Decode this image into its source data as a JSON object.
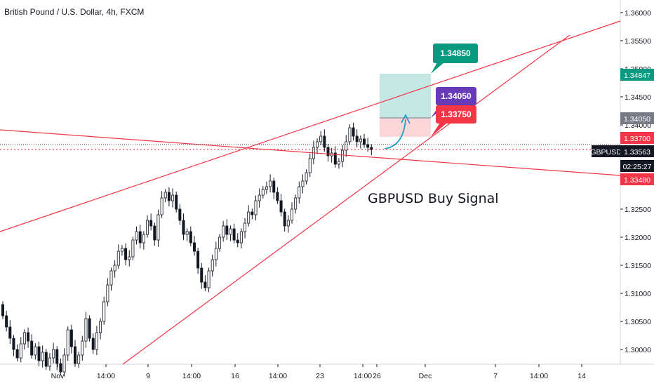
{
  "chart_data": {
    "type": "candlestick",
    "title": "British Pound / U.S. Dollar, 4h, FXCM",
    "symbol": "GBPUSD",
    "y_range": [
      1.295,
      1.362
    ],
    "y_ticks": [
      "1.36000",
      "1.35500",
      "1.35000",
      "1.34500",
      "1.34000",
      "1.33500",
      "1.33000",
      "1.32500",
      "1.32000",
      "1.31500",
      "1.31000",
      "1.30500",
      "1.30000"
    ],
    "x_ticks": [
      "Nov",
      "14:00",
      "9",
      "14:00",
      "16",
      "14:00",
      "23",
      "14:00",
      "26",
      "Dec",
      "7",
      "14:00",
      "14"
    ],
    "price_tags": [
      {
        "label": "1.34847",
        "value": 1.34847,
        "color": "#089981"
      },
      {
        "label": "1.34050",
        "value": 1.3405,
        "color": "#787b86"
      },
      {
        "label": "1.33700",
        "value": 1.337,
        "color": "#f23645"
      },
      {
        "label": "GBPUSD",
        "color": "#131722"
      },
      {
        "label": "1.33563",
        "value": 1.33563,
        "color": "#131722"
      },
      {
        "label": "02:25:27",
        "color": "#131722"
      },
      {
        "label": "1.33480",
        "value": 1.3348,
        "color": "#f23645"
      }
    ],
    "callouts": [
      {
        "label": "1.34850",
        "value": 1.3485,
        "color": "#089981"
      },
      {
        "label": "1.34050",
        "value": 1.3405,
        "color": "#673ab7"
      },
      {
        "label": "1.33750",
        "value": 1.3375,
        "color": "#f23645"
      }
    ],
    "annotation": "GBPUSD Buy Signal",
    "current_price": 1.33563,
    "colors": {
      "up": "#131722",
      "down": "#131722",
      "trendline": "#f23645",
      "target_zone": "#b2dfdb",
      "stop_zone": "#fbd3d6",
      "arrow": "#22a3c4"
    },
    "candles_close": [
      1.306,
      1.304,
      1.302,
      1.3,
      1.2985,
      1.301,
      1.303,
      1.3015,
      1.299,
      1.3005,
      1.298,
      1.2995,
      1.297,
      1.2985,
      1.3,
      1.2975,
      1.296,
      1.299,
      1.3035,
      1.3005,
      1.2975,
      1.299,
      1.3015,
      1.3055,
      1.302,
      1.3,
      1.303,
      1.305,
      1.3085,
      1.3115,
      1.314,
      1.315,
      1.3175,
      1.318,
      1.316,
      1.3165,
      1.3195,
      1.321,
      1.319,
      1.3205,
      1.323,
      1.322,
      1.3195,
      1.324,
      1.327,
      1.328,
      1.3265,
      1.3275,
      1.325,
      1.323,
      1.3205,
      1.321,
      1.319,
      1.3175,
      1.3145,
      1.312,
      1.311,
      1.314,
      1.316,
      1.318,
      1.32,
      1.322,
      1.3205,
      1.3215,
      1.3195,
      1.319,
      1.321,
      1.3225,
      1.3245,
      1.324,
      1.3265,
      1.3275,
      1.3285,
      1.329,
      1.33,
      1.328,
      1.3265,
      1.3245,
      1.322,
      1.323,
      1.325,
      1.327,
      1.329,
      1.33,
      1.3315,
      1.334,
      1.336,
      1.337,
      1.338,
      1.336,
      1.3345,
      1.335,
      1.333,
      1.3335,
      1.3355,
      1.337,
      1.3395,
      1.338,
      1.337,
      1.3375,
      1.3365,
      1.336,
      1.3356
    ]
  }
}
